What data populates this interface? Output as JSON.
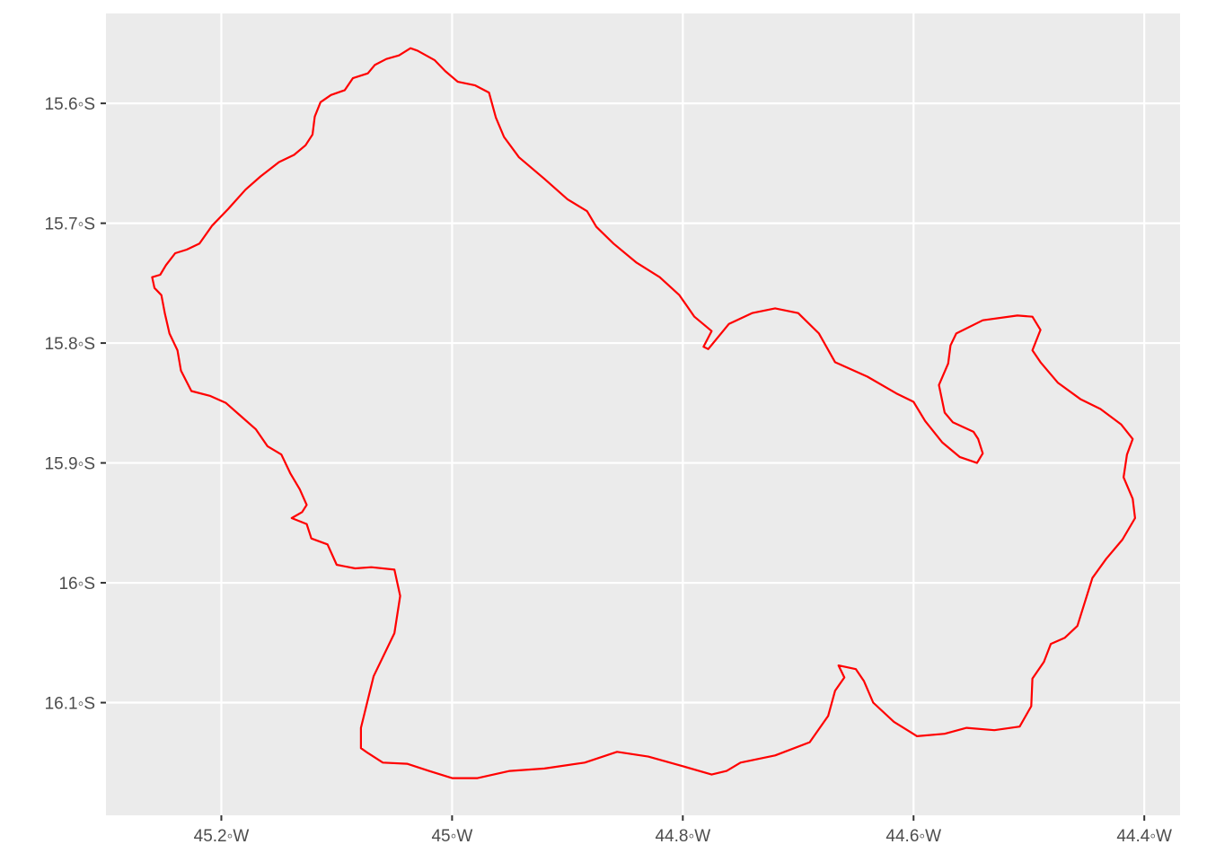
{
  "map": {
    "x_ticks": [
      {
        "value": -45.2,
        "label": "45.2◦W"
      },
      {
        "value": -45.0,
        "label": "45◦W"
      },
      {
        "value": -44.8,
        "label": "44.8◦W"
      },
      {
        "value": -44.6,
        "label": "44.6◦W"
      },
      {
        "value": -44.4,
        "label": "44.4◦W"
      }
    ],
    "y_ticks": [
      {
        "value": -15.6,
        "label": "15.6◦S"
      },
      {
        "value": -15.7,
        "label": "15.7◦S"
      },
      {
        "value": -15.8,
        "label": "15.8◦S"
      },
      {
        "value": -15.9,
        "label": "15.9◦S"
      },
      {
        "value": -16.0,
        "label": "16◦S"
      },
      {
        "value": -16.1,
        "label": "16.1◦S"
      }
    ],
    "xlim": [
      -45.3,
      -44.369
    ],
    "ylim": [
      -16.194,
      -15.525
    ],
    "colors": {
      "panel_background": "#ebebeb",
      "gridline": "#ffffff",
      "outline": "#ff0000",
      "tick": "#333333"
    },
    "boundary": [
      [
        -45.036,
        -15.554
      ],
      [
        -45.046,
        -15.56
      ],
      [
        -45.057,
        -15.563
      ],
      [
        -45.067,
        -15.568
      ],
      [
        -45.073,
        -15.575
      ],
      [
        -45.086,
        -15.579
      ],
      [
        -45.093,
        -15.589
      ],
      [
        -45.105,
        -15.593
      ],
      [
        -45.114,
        -15.599
      ],
      [
        -45.119,
        -15.611
      ],
      [
        -45.121,
        -15.626
      ],
      [
        -45.127,
        -15.635
      ],
      [
        -45.137,
        -15.643
      ],
      [
        -45.15,
        -15.649
      ],
      [
        -45.166,
        -15.661
      ],
      [
        -45.179,
        -15.672
      ],
      [
        -45.194,
        -15.688
      ],
      [
        -45.208,
        -15.702
      ],
      [
        -45.219,
        -15.717
      ],
      [
        -45.23,
        -15.722
      ],
      [
        -45.24,
        -15.725
      ],
      [
        -45.248,
        -15.735
      ],
      [
        -45.253,
        -15.743
      ],
      [
        -45.26,
        -15.745
      ],
      [
        -45.258,
        -15.754
      ],
      [
        -45.252,
        -15.76
      ],
      [
        -45.249,
        -15.775
      ],
      [
        -45.245,
        -15.792
      ],
      [
        -45.238,
        -15.806
      ],
      [
        -45.235,
        -15.823
      ],
      [
        -45.226,
        -15.84
      ],
      [
        -45.21,
        -15.844
      ],
      [
        -45.196,
        -15.85
      ],
      [
        -45.183,
        -15.861
      ],
      [
        -45.17,
        -15.872
      ],
      [
        -45.16,
        -15.886
      ],
      [
        -45.148,
        -15.893
      ],
      [
        -45.14,
        -15.909
      ],
      [
        -45.132,
        -15.922
      ],
      [
        -45.126,
        -15.935
      ],
      [
        -45.13,
        -15.941
      ],
      [
        -45.139,
        -15.946
      ],
      [
        -45.126,
        -15.951
      ],
      [
        -45.122,
        -15.963
      ],
      [
        -45.108,
        -15.968
      ],
      [
        -45.1,
        -15.985
      ],
      [
        -45.084,
        -15.988
      ],
      [
        -45.07,
        -15.987
      ],
      [
        -45.05,
        -15.989
      ],
      [
        -45.045,
        -16.011
      ],
      [
        -45.05,
        -16.042
      ],
      [
        -45.068,
        -16.078
      ],
      [
        -45.079,
        -16.121
      ],
      [
        -45.079,
        -16.138
      ],
      [
        -45.073,
        -16.142
      ],
      [
        -45.06,
        -16.15
      ],
      [
        -45.039,
        -16.151
      ],
      [
        -45.02,
        -16.157
      ],
      [
        -45.0,
        -16.163
      ],
      [
        -44.978,
        -16.163
      ],
      [
        -44.95,
        -16.157
      ],
      [
        -44.92,
        -16.155
      ],
      [
        -44.885,
        -16.15
      ],
      [
        -44.857,
        -16.141
      ],
      [
        -44.83,
        -16.145
      ],
      [
        -44.8,
        -16.153
      ],
      [
        -44.775,
        -16.16
      ],
      [
        -44.762,
        -16.157
      ],
      [
        -44.75,
        -16.15
      ],
      [
        -44.72,
        -16.144
      ],
      [
        -44.69,
        -16.133
      ],
      [
        -44.674,
        -16.111
      ],
      [
        -44.668,
        -16.09
      ],
      [
        -44.66,
        -16.079
      ],
      [
        -44.665,
        -16.069
      ],
      [
        -44.65,
        -16.072
      ],
      [
        -44.643,
        -16.082
      ],
      [
        -44.635,
        -16.1
      ],
      [
        -44.617,
        -16.116
      ],
      [
        -44.597,
        -16.128
      ],
      [
        -44.573,
        -16.126
      ],
      [
        -44.554,
        -16.121
      ],
      [
        -44.53,
        -16.123
      ],
      [
        -44.508,
        -16.12
      ],
      [
        -44.498,
        -16.103
      ],
      [
        -44.497,
        -16.08
      ],
      [
        -44.487,
        -16.066
      ],
      [
        -44.481,
        -16.051
      ],
      [
        -44.469,
        -16.046
      ],
      [
        -44.458,
        -16.036
      ],
      [
        -44.445,
        -15.996
      ],
      [
        -44.433,
        -15.98
      ],
      [
        -44.419,
        -15.964
      ],
      [
        -44.408,
        -15.946
      ],
      [
        -44.41,
        -15.93
      ],
      [
        -44.418,
        -15.912
      ],
      [
        -44.415,
        -15.893
      ],
      [
        -44.41,
        -15.88
      ],
      [
        -44.42,
        -15.868
      ],
      [
        -44.438,
        -15.855
      ],
      [
        -44.455,
        -15.847
      ],
      [
        -44.475,
        -15.833
      ],
      [
        -44.49,
        -15.816
      ],
      [
        -44.497,
        -15.806
      ],
      [
        -44.49,
        -15.789
      ],
      [
        -44.497,
        -15.778
      ],
      [
        -44.51,
        -15.777
      ],
      [
        -44.54,
        -15.781
      ],
      [
        -44.563,
        -15.792
      ],
      [
        -44.568,
        -15.802
      ],
      [
        -44.57,
        -15.817
      ],
      [
        -44.578,
        -15.835
      ],
      [
        -44.573,
        -15.858
      ],
      [
        -44.566,
        -15.866
      ],
      [
        -44.548,
        -15.874
      ],
      [
        -44.544,
        -15.88
      ],
      [
        -44.54,
        -15.892
      ],
      [
        -44.545,
        -15.9
      ],
      [
        -44.56,
        -15.895
      ],
      [
        -44.575,
        -15.883
      ],
      [
        -44.59,
        -15.865
      ],
      [
        -44.6,
        -15.849
      ],
      [
        -44.615,
        -15.842
      ],
      [
        -44.64,
        -15.828
      ],
      [
        -44.668,
        -15.816
      ],
      [
        -44.682,
        -15.792
      ],
      [
        -44.7,
        -15.775
      ],
      [
        -44.72,
        -15.771
      ],
      [
        -44.74,
        -15.775
      ],
      [
        -44.76,
        -15.784
      ],
      [
        -44.778,
        -15.805
      ],
      [
        -44.782,
        -15.803
      ],
      [
        -44.775,
        -15.79
      ],
      [
        -44.79,
        -15.778
      ],
      [
        -44.803,
        -15.76
      ],
      [
        -44.82,
        -15.745
      ],
      [
        -44.84,
        -15.733
      ],
      [
        -44.86,
        -15.717
      ],
      [
        -44.875,
        -15.703
      ],
      [
        -44.883,
        -15.69
      ],
      [
        -44.9,
        -15.68
      ],
      [
        -44.92,
        -15.663
      ],
      [
        -44.942,
        -15.645
      ],
      [
        -44.955,
        -15.628
      ],
      [
        -44.962,
        -15.612
      ],
      [
        -44.968,
        -15.591
      ],
      [
        -44.98,
        -15.585
      ],
      [
        -44.995,
        -15.582
      ],
      [
        -45.006,
        -15.573
      ],
      [
        -45.015,
        -15.564
      ],
      [
        -45.03,
        -15.556
      ],
      [
        -45.036,
        -15.554
      ]
    ]
  }
}
